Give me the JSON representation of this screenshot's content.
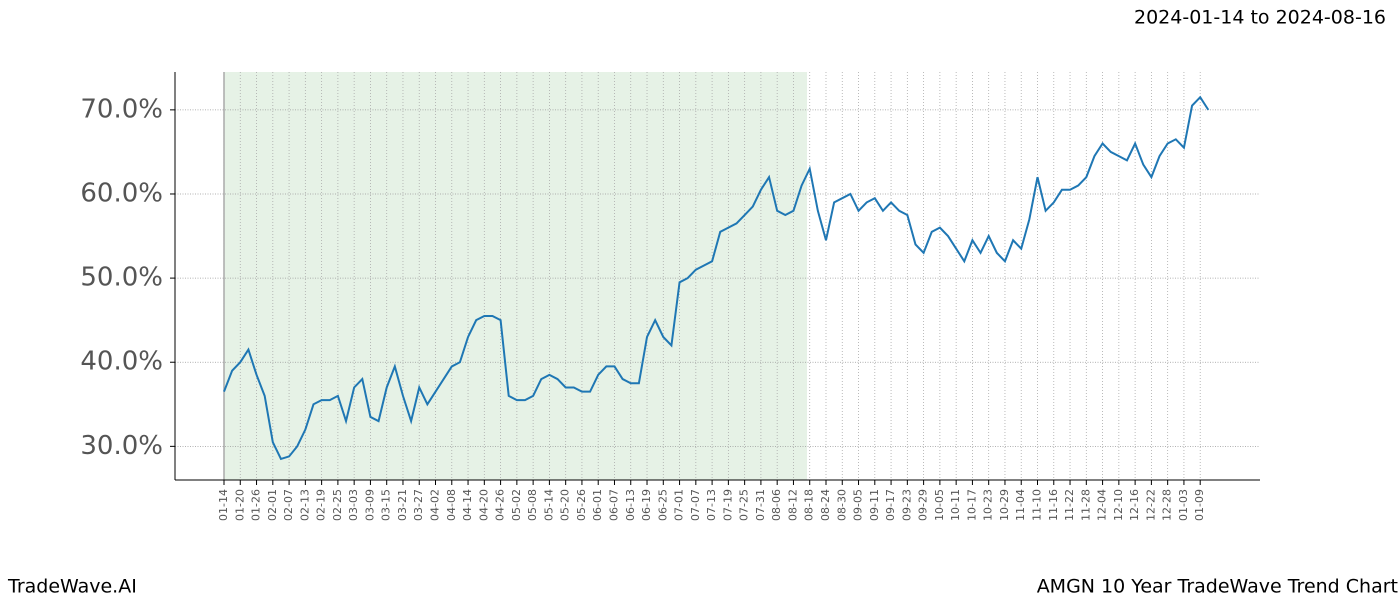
{
  "chart_data": {
    "type": "line",
    "title": "2024-01-14 to 2024-08-16",
    "footer_left": "TradeWave.AI",
    "footer_right": "AMGN 10 Year TradeWave Trend Chart",
    "categories": [
      "01-14",
      null,
      "01-20",
      null,
      "01-26",
      null,
      "02-01",
      null,
      "02-07",
      null,
      "02-13",
      null,
      "02-19",
      null,
      "02-25",
      null,
      "03-03",
      null,
      "03-09",
      null,
      "03-15",
      null,
      "03-21",
      null,
      "03-27",
      null,
      "04-02",
      null,
      "04-08",
      null,
      "04-14",
      null,
      "04-20",
      null,
      "04-26",
      null,
      "05-02",
      null,
      "05-08",
      null,
      "05-14",
      null,
      "05-20",
      null,
      "05-26",
      null,
      "06-01",
      null,
      "06-07",
      null,
      "06-13",
      null,
      "06-19",
      null,
      "06-25",
      null,
      "07-01",
      null,
      "07-07",
      null,
      "07-13",
      null,
      "07-19",
      null,
      "07-25",
      null,
      "07-31",
      null,
      "08-06",
      null,
      "08-12",
      null,
      "08-18",
      null,
      "08-24",
      null,
      "08-30",
      null,
      "09-05",
      null,
      "09-11",
      null,
      "09-17",
      null,
      "09-23",
      null,
      "09-29",
      null,
      "10-05",
      null,
      "10-11",
      null,
      "10-17",
      null,
      "10-23",
      null,
      "10-29",
      null,
      "11-04",
      null,
      "11-10",
      null,
      "11-16",
      null,
      "11-22",
      null,
      "11-28",
      null,
      "12-04",
      null,
      "12-10",
      null,
      "12-16",
      null,
      "12-22",
      null,
      "12-28",
      null,
      "01-03",
      null,
      "01-09",
      null
    ],
    "series": [
      {
        "color": "#1f77b4",
        "values": [
          36.5,
          39,
          40,
          41.5,
          38.5,
          36,
          30.5,
          28.5,
          28.8,
          30,
          32,
          35,
          35.5,
          35.5,
          36,
          33,
          37,
          38,
          33.5,
          33,
          37,
          39.5,
          36,
          33,
          37,
          35,
          36.5,
          38,
          39.5,
          40,
          43,
          45,
          45.5,
          45.5,
          45,
          36,
          35.5,
          35.5,
          36,
          38,
          38.5,
          38,
          37,
          37,
          36.5,
          36.5,
          38.5,
          39.5,
          39.5,
          38,
          37.5,
          37.5,
          43,
          45,
          43,
          42,
          49.5,
          50,
          51,
          51.5,
          52,
          55.5,
          56,
          56.5,
          57.5,
          58.5,
          60.5,
          62,
          58,
          57.5,
          58,
          61,
          63,
          58,
          54.5,
          59,
          59.5,
          60,
          58,
          59,
          59.5,
          58,
          59,
          58,
          57.5,
          54,
          53,
          55.5,
          56,
          55,
          53.5,
          52,
          54.5,
          53,
          55,
          53,
          52,
          54.5,
          53.5,
          57,
          62,
          58,
          59,
          60.5,
          60.5,
          61,
          62,
          64.5,
          66,
          65,
          64.5,
          64,
          66,
          63.5,
          62,
          64.5,
          66,
          66.5,
          65.5,
          70.5,
          71.5,
          70
        ]
      }
    ],
    "ylim": [
      26,
      74.5
    ],
    "yticks": [
      {
        "value": 30,
        "label": "30.0%"
      },
      {
        "value": 40,
        "label": "40.0%"
      },
      {
        "value": 50,
        "label": "50.0%"
      },
      {
        "value": 60,
        "label": "60.0%"
      },
      {
        "value": 70,
        "label": "70.0%"
      }
    ],
    "grid": true,
    "shade_color": "#e6f2e6"
  }
}
